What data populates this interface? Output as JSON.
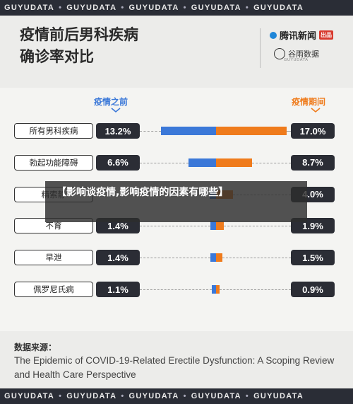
{
  "watermark_band": [
    "GUYUDATA",
    "GUYUDATA",
    "GUYUDATA",
    "GUYUDATA",
    "GUYUDATA"
  ],
  "title_line1": "疫情前后男科疾病",
  "title_line2": "确诊率对比",
  "logos": {
    "tencent": "腾讯新闻",
    "tencent_badge": "出品",
    "guyu": "谷雨数据",
    "guyu_sub": "GUYUDATA"
  },
  "legend": {
    "before": "疫情之前",
    "during": "疫情期间"
  },
  "colors": {
    "before": "#3b78d8",
    "during": "#ef7b1c",
    "value_box": "#2b2d35"
  },
  "overlay_banner": "【影响谈疫情,影响疫情的因素有哪些】",
  "source": {
    "label": "数据来源：",
    "text": "The Epidemic of COVID-19-Related Erectile Dysfunction: A Scoping Review and Health Care Perspective"
  },
  "chart_data": {
    "type": "bar",
    "orientation": "diverging-horizontal",
    "categories": [
      "所有男科疾病",
      "勃起功能障碍",
      "精索静脉曲张",
      "不育",
      "早泄",
      "佩罗尼氏病"
    ],
    "categories_display": [
      "所有男科疾病",
      "勃起功能障碍",
      "精索静",
      "不育",
      "早泄",
      "佩罗尼氏病"
    ],
    "series": [
      {
        "name": "疫情之前",
        "values": [
          13.2,
          6.6,
          1.6,
          1.4,
          1.4,
          1.1
        ],
        "labels": [
          "13.2%",
          "6.6%",
          "",
          "1.4%",
          "1.4%",
          "1.1%"
        ]
      },
      {
        "name": "疫情期间",
        "values": [
          17.0,
          8.7,
          4.0,
          1.9,
          1.5,
          0.9
        ],
        "labels": [
          "17.0%",
          "8.7%",
          "4.0%",
          "1.9%",
          "1.5%",
          "0.9%"
        ]
      }
    ],
    "unit": "%"
  }
}
